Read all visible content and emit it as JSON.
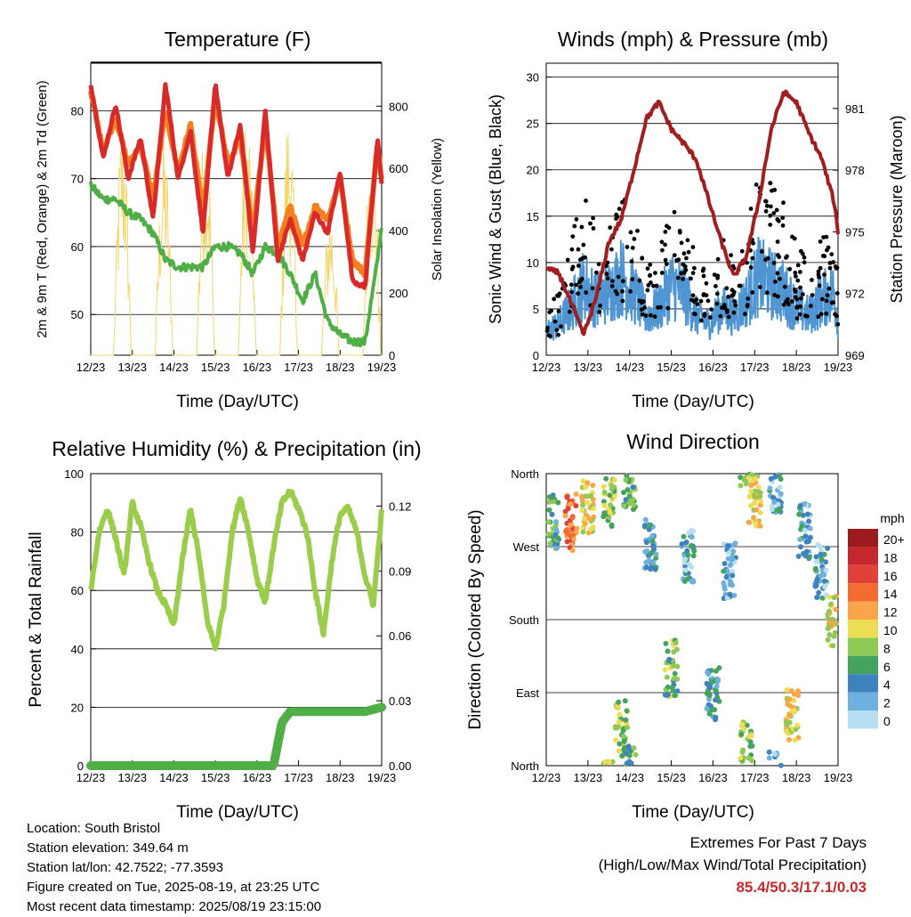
{
  "days": [
    "12/23",
    "13/23",
    "14/23",
    "15/23",
    "16/23",
    "17/23",
    "18/23",
    "19/23"
  ],
  "colors": {
    "temp2m": "#d92a2a",
    "temp9m": "#f37f22",
    "dew": "#4fae45",
    "solar": "#f2d66b",
    "wind": "#4e95d1",
    "gust": "#000000",
    "pressure": "#a21d1d",
    "rh": "#9acd4c",
    "rain": "#4fae45"
  },
  "footer": {
    "location": "Location: South Bristol",
    "elevation": "Station elevation: 349.64 m",
    "latlon": "Station lat/lon: 42.7522; -77.3593",
    "created": "Figure created on Tue, 2025-08-19, at 23:25 UTC",
    "recent": "Most recent data timestamp: 2025/08/19 23:15:00"
  },
  "extremes": {
    "title": "Extremes For Past 7 Days",
    "subtitle": "(High/Low/Max Wind/Total Precipitation)",
    "values": "85.4/50.3/17.1/0.03"
  },
  "chart_data": [
    {
      "type": "line",
      "title": "Temperature (F)",
      "xlabel": "Time (Day/UTC)",
      "ylabel": "2m & 9m T (Red, Orange) & 2m Td (Green)",
      "ylabel_right": "Solar Insolation (Yellow)",
      "ylim": [
        44,
        87
      ],
      "ylim_right": [
        0,
        938
      ],
      "yticks": [
        50,
        60,
        70,
        80
      ],
      "yticks_right": [
        0,
        200,
        400,
        600,
        800
      ],
      "x": [
        0,
        0.3,
        0.6,
        0.9,
        1.2,
        1.5,
        1.8,
        2.1,
        2.4,
        2.7,
        3.0,
        3.3,
        3.6,
        3.9,
        4.2,
        4.5,
        4.8,
        5.1,
        5.4,
        5.7,
        6.0,
        6.3,
        6.6,
        6.9,
        7.0
      ],
      "series": [
        {
          "name": "2m T",
          "values": [
            84,
            73,
            81,
            70,
            76,
            64,
            84,
            70,
            77,
            62,
            84,
            70,
            78,
            59,
            80,
            58,
            64,
            58,
            65,
            62,
            71,
            55,
            54,
            76,
            69
          ]
        },
        {
          "name": "9m T",
          "values": [
            83,
            74,
            79,
            72,
            75,
            67,
            80,
            71,
            78,
            65,
            82,
            72,
            76,
            62,
            78,
            60,
            66,
            60,
            66,
            64,
            70,
            58,
            56,
            75,
            70
          ]
        },
        {
          "name": "2m Td",
          "values": [
            69,
            67,
            67,
            65,
            64,
            62,
            58,
            57,
            57,
            57,
            60,
            60,
            59,
            56,
            60,
            59,
            56,
            52,
            56,
            49,
            47,
            46,
            46,
            58,
            63
          ]
        },
        {
          "name": "Solar",
          "values": [
            0,
            0,
            750,
            820,
            0,
            0,
            860,
            700,
            0,
            0,
            810,
            760,
            0,
            0,
            780,
            700,
            0,
            0,
            700,
            600,
            0,
            0,
            800,
            760,
            0
          ]
        }
      ]
    },
    {
      "type": "scatter",
      "title": "Winds (mph) & Pressure (mb)",
      "xlabel": "Time (Day/UTC)",
      "ylabel": "Sonic Wind & Gust (Blue, Black)",
      "ylabel_right": "Station Pressure (Maroon)",
      "ylim": [
        0,
        31.5
      ],
      "ylim_right": [
        969,
        983.2
      ],
      "yticks": [
        0,
        5,
        10,
        15,
        20,
        25,
        30
      ],
      "yticks_right": [
        969,
        972,
        975,
        978,
        981
      ],
      "x": [
        0,
        0.3,
        0.6,
        0.9,
        1.2,
        1.5,
        1.8,
        2.1,
        2.4,
        2.7,
        3.0,
        3.3,
        3.6,
        3.9,
        4.2,
        4.5,
        4.8,
        5.1,
        5.4,
        5.7,
        6.0,
        6.3,
        6.6,
        6.9,
        7.0
      ],
      "series": [
        {
          "name": "Pressure",
          "values": [
            973.2,
            973.0,
            971.5,
            970.0,
            971.8,
            974.5,
            975.6,
            978.0,
            980.5,
            981.3,
            980.0,
            979.3,
            978.5,
            976.5,
            974.5,
            972.8,
            973.8,
            976.5,
            980.0,
            981.8,
            981.3,
            979.8,
            978.6,
            976.5,
            975.0
          ]
        },
        {
          "name": "Sonic Wind",
          "values": [
            3,
            4,
            6,
            9,
            7,
            8,
            10,
            8,
            5,
            6,
            9,
            8,
            5,
            4,
            6,
            5,
            7,
            10,
            9,
            8,
            6,
            5,
            7,
            8,
            4
          ]
        },
        {
          "name": "Gust",
          "values": [
            5,
            6,
            12,
            16,
            13,
            14,
            16,
            14,
            9,
            11,
            15,
            13,
            10,
            8,
            12,
            10,
            13,
            18,
            17,
            15,
            11,
            10,
            12,
            14,
            8
          ]
        }
      ]
    },
    {
      "type": "line",
      "title": "Relative Humidity (%) & Precipitation (in)",
      "xlabel": "Time (Day/UTC)",
      "ylabel": "Percent & Total Rainfall",
      "ylim": [
        0,
        100
      ],
      "ylim_right": [
        0,
        0.135
      ],
      "yticks": [
        0,
        20,
        40,
        60,
        80,
        100
      ],
      "yticks_right": [
        "0.00",
        "0.03",
        "0.06",
        "0.09",
        "0.12"
      ],
      "x": [
        0,
        0.2,
        0.4,
        0.6,
        0.8,
        1.0,
        1.2,
        1.4,
        1.6,
        1.8,
        2.0,
        2.2,
        2.4,
        2.6,
        2.8,
        3.0,
        3.2,
        3.4,
        3.6,
        3.8,
        4.0,
        4.2,
        4.4,
        4.6,
        4.8,
        5.0,
        5.2,
        5.4,
        5.6,
        5.8,
        6.0,
        6.2,
        6.4,
        6.6,
        6.8,
        7.0
      ],
      "series": [
        {
          "name": "RH",
          "values": [
            60,
            80,
            88,
            78,
            65,
            90,
            82,
            70,
            60,
            55,
            48,
            70,
            88,
            72,
            50,
            40,
            55,
            80,
            92,
            80,
            64,
            56,
            75,
            90,
            94,
            88,
            80,
            60,
            45,
            70,
            86,
            88,
            80,
            65,
            55,
            87
          ]
        },
        {
          "name": "Precip",
          "values": [
            0,
            0,
            0,
            0,
            0,
            0,
            0,
            0,
            0,
            0,
            0,
            0,
            0,
            0,
            0,
            0,
            0,
            0,
            0,
            0,
            0,
            0,
            0,
            0.02,
            0.025,
            0.025,
            0.025,
            0.025,
            0.025,
            0.025,
            0.025,
            0.025,
            0.025,
            0.025,
            0.026,
            0.027
          ]
        }
      ]
    },
    {
      "type": "scatter",
      "title": "Wind Direction",
      "xlabel": "Time (Day/UTC)",
      "ylabel": "Direction (Colored By Speed)",
      "yticks": [
        "North",
        "East",
        "South",
        "West",
        "North"
      ],
      "ylim": [
        0,
        360
      ],
      "legend_title": "mph",
      "legend_labels": [
        "20+",
        "18",
        "16",
        "14",
        "12",
        "10",
        "8",
        "6",
        "4",
        "2",
        "0"
      ],
      "legend_colors": [
        "#9b1b1e",
        "#c5282c",
        "#e2413a",
        "#f26b30",
        "#f9a64a",
        "#ecdd54",
        "#8ec955",
        "#44a35c",
        "#3f82c0",
        "#6fb0df",
        "#b7dff4"
      ],
      "clusters": [
        {
          "x": 0.15,
          "dir": 300,
          "spd": 5
        },
        {
          "x": 0.6,
          "dir": 300,
          "spd": 14
        },
        {
          "x": 1.0,
          "dir": 320,
          "spd": 10
        },
        {
          "x": 1.5,
          "dir": 330,
          "spd": 8
        },
        {
          "x": 1.8,
          "dir": 45,
          "spd": 8
        },
        {
          "x": 2.0,
          "dir": 350,
          "spd": 6
        },
        {
          "x": 2.5,
          "dir": 270,
          "spd": 4
        },
        {
          "x": 3.0,
          "dir": 120,
          "spd": 7
        },
        {
          "x": 3.4,
          "dir": 260,
          "spd": 3
        },
        {
          "x": 4.0,
          "dir": 90,
          "spd": 4
        },
        {
          "x": 4.4,
          "dir": 240,
          "spd": 3
        },
        {
          "x": 4.8,
          "dir": 20,
          "spd": 8
        },
        {
          "x": 5.0,
          "dir": 330,
          "spd": 10
        },
        {
          "x": 5.5,
          "dir": 345,
          "spd": 3
        },
        {
          "x": 5.9,
          "dir": 60,
          "spd": 10
        },
        {
          "x": 6.2,
          "dir": 290,
          "spd": 3
        },
        {
          "x": 6.6,
          "dir": 240,
          "spd": 3
        },
        {
          "x": 6.9,
          "dir": 180,
          "spd": 10
        }
      ]
    }
  ]
}
